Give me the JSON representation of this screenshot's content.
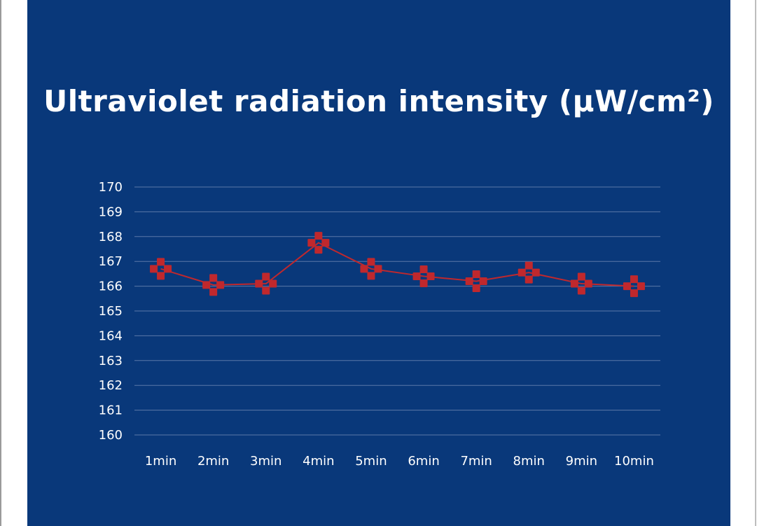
{
  "chart_data": {
    "type": "line",
    "title": "Ultraviolet radiation intensity (μW/cm²)",
    "xlabel": "",
    "ylabel": "",
    "categories": [
      "1min",
      "2min",
      "3min",
      "4min",
      "5min",
      "6min",
      "7min",
      "8min",
      "9min",
      "10min"
    ],
    "series": [
      {
        "name": "Ultraviolet radiation intensity",
        "values": [
          166.7,
          166.05,
          166.1,
          167.75,
          166.7,
          166.4,
          166.2,
          166.55,
          166.1,
          166.0
        ],
        "color": "#c0282d"
      }
    ],
    "ylim": [
      160,
      170
    ],
    "yticks": [
      "160",
      "161",
      "162",
      "163",
      "164",
      "165",
      "166",
      "167",
      "168",
      "169",
      "170"
    ],
    "grid": true,
    "legend": "none",
    "colors": {
      "background": "#09387a",
      "gridline": "#5b78a8",
      "text": "#ffffff"
    }
  }
}
